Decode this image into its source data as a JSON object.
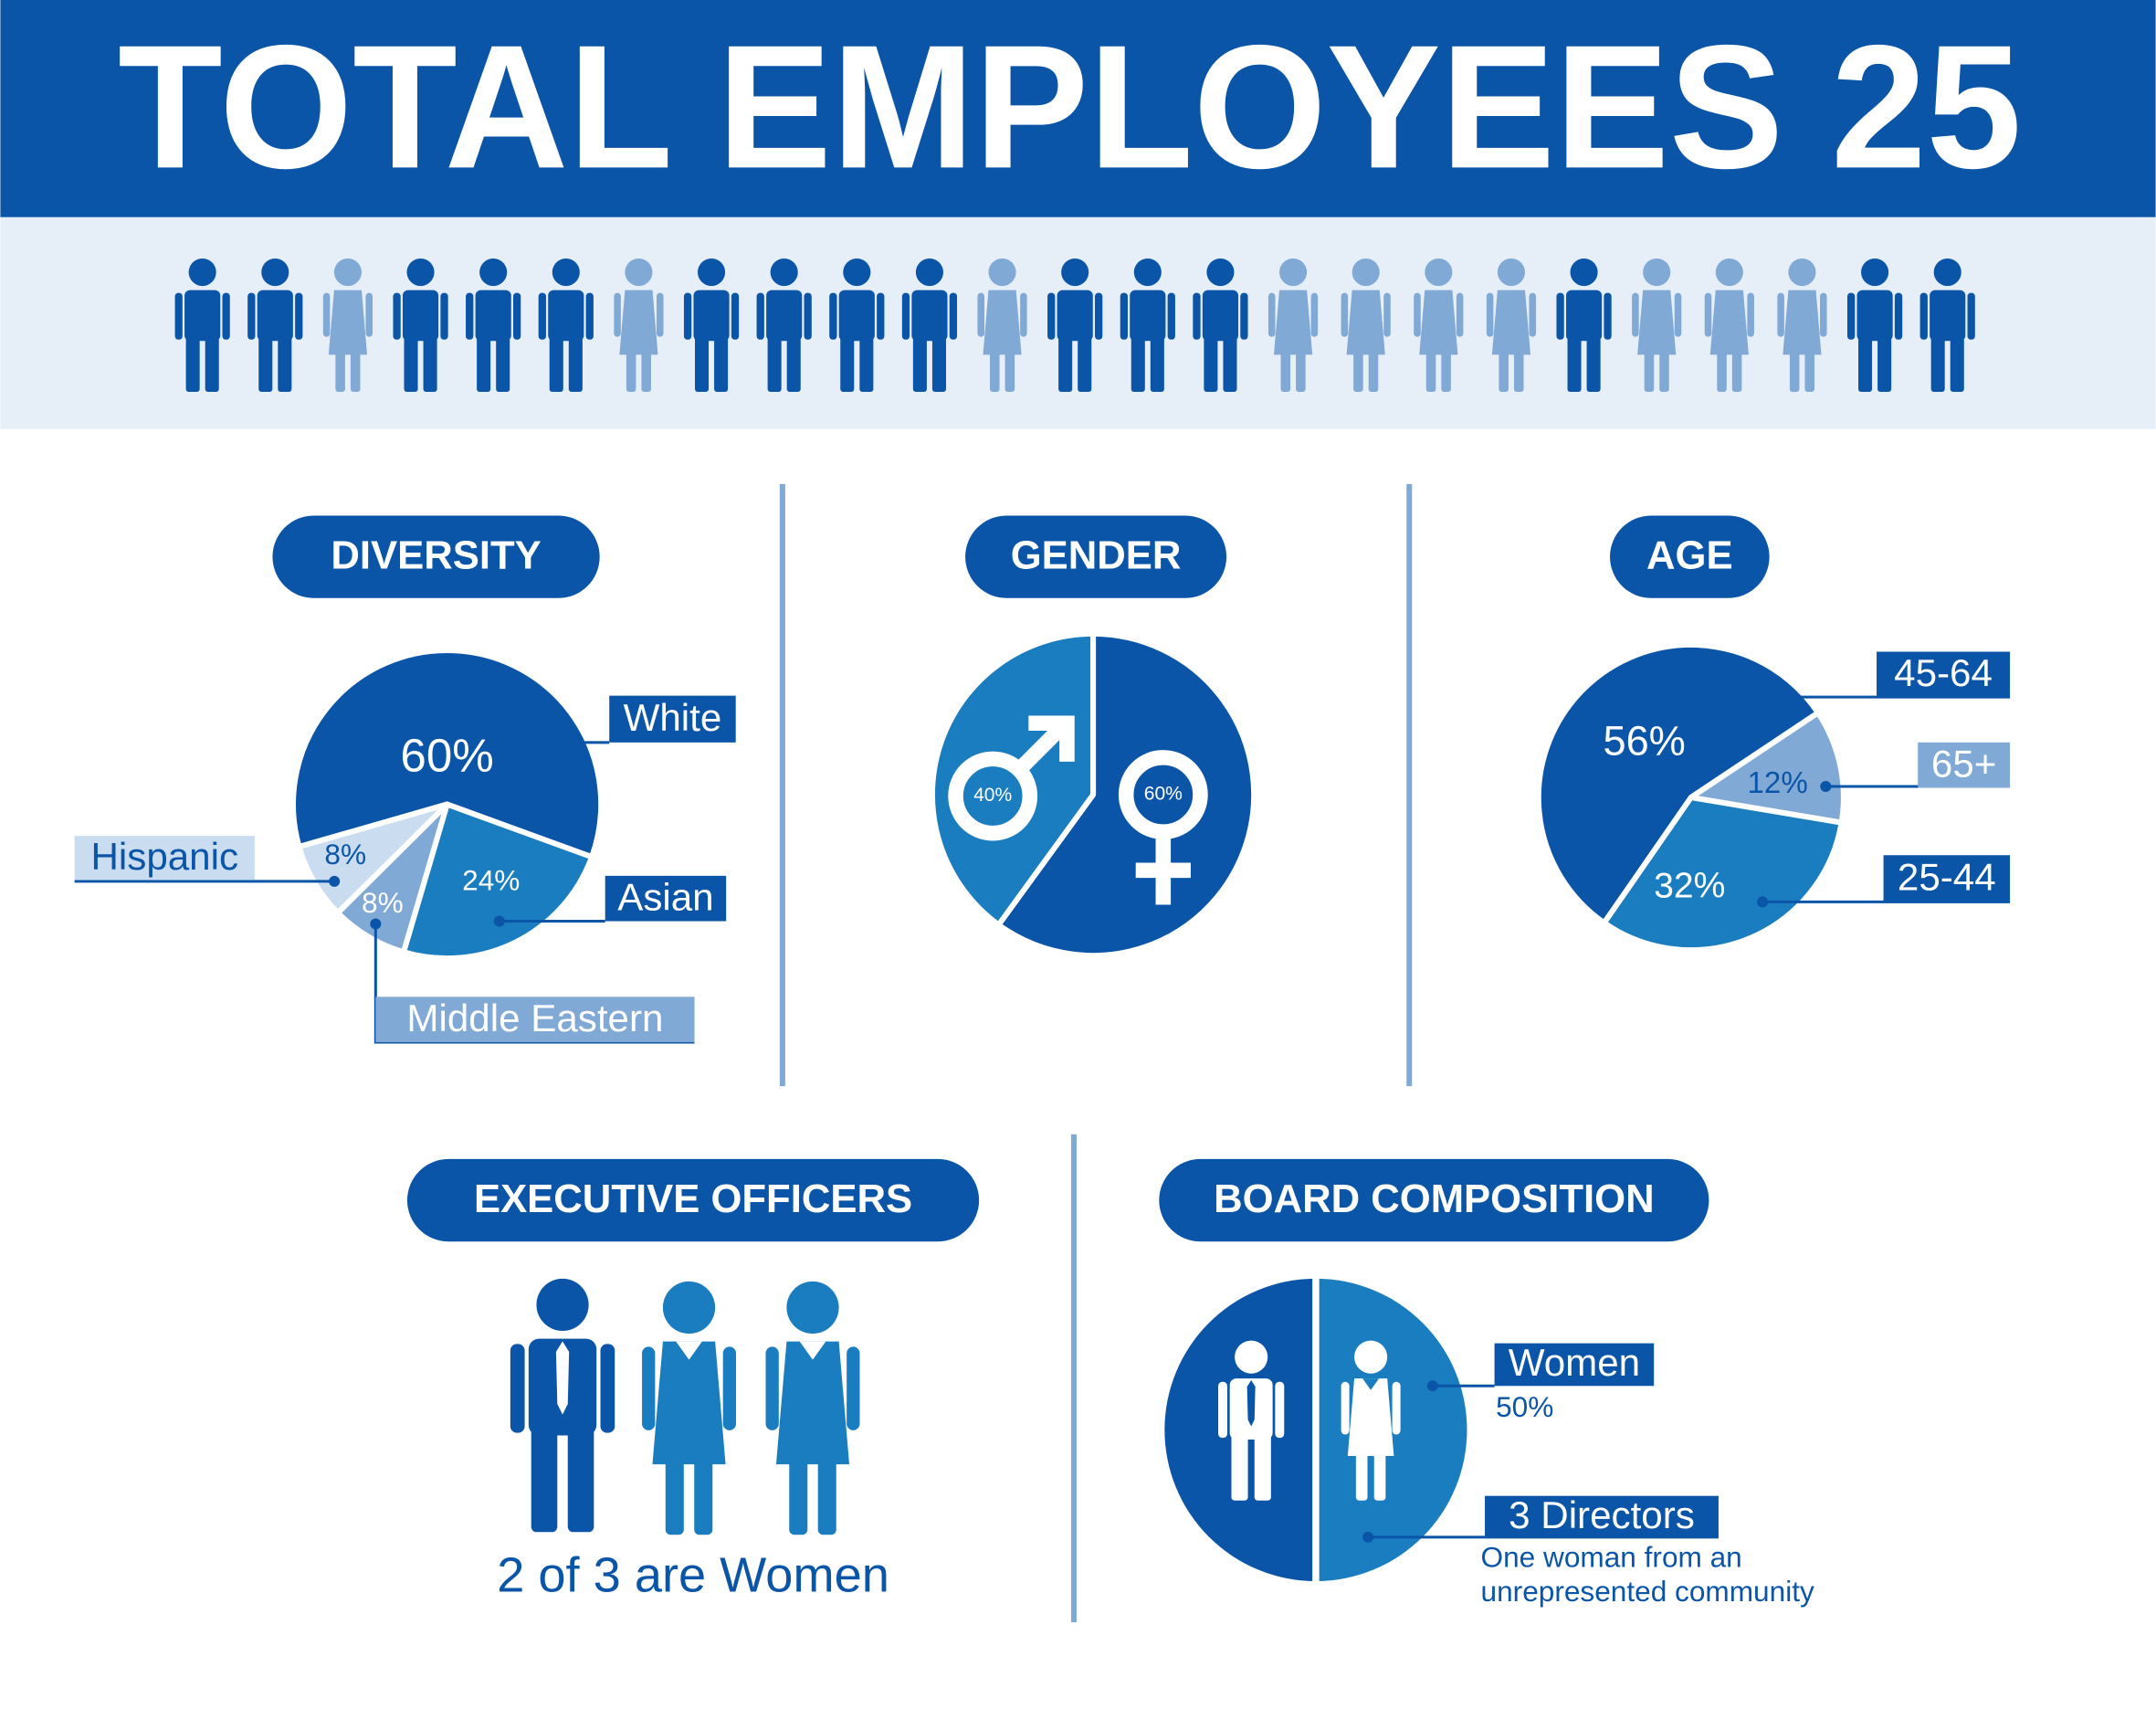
{
  "header": {
    "title": "TOTAL EMPLOYEES 25"
  },
  "chart_data": [
    {
      "type": "pie",
      "title": "DIVERSITY",
      "categories": [
        "White",
        "Asian",
        "Middle Eastern",
        "Hispanic"
      ],
      "values": [
        60,
        24,
        8,
        8
      ],
      "value_labels": [
        "60%",
        "24%",
        "8%",
        "8%"
      ],
      "colors": [
        "#0b55a8",
        "#1a7dc0",
        "#80a9d6",
        "#c9dcf0"
      ]
    },
    {
      "type": "pie",
      "title": "GENDER",
      "values": [
        60,
        40
      ],
      "value_labels": [
        "60%",
        "40%"
      ],
      "colors": [
        "#0b55a8",
        "#1a7dc0"
      ]
    },
    {
      "type": "pie",
      "title": "AGE",
      "categories": [
        "45-64",
        "65+",
        "25-44"
      ],
      "values": [
        56,
        12,
        32
      ],
      "value_labels": [
        "56%",
        "12%",
        "32%"
      ],
      "colors": [
        "#0b55a8",
        "#80a9d6",
        "#1a7dc0"
      ]
    }
  ],
  "executive": {
    "title": "EXECUTIVE OFFICERS",
    "caption": "2 of 3 are Women"
  },
  "board": {
    "title": "BOARD COMPOSITION",
    "women": "Women",
    "women_share": "50%",
    "directors": "3 Directors",
    "note": [
      "One woman from an",
      "unrepresented community"
    ]
  }
}
